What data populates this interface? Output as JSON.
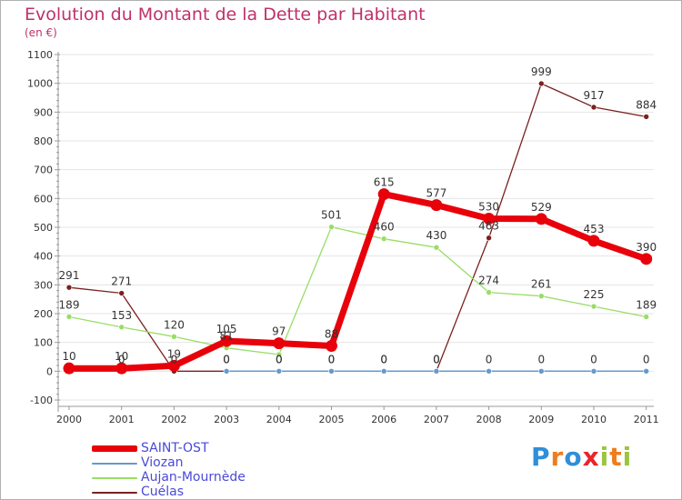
{
  "header": {
    "title": "Evolution du Montant de la Dette par Habitant",
    "subtitle": "(en €)"
  },
  "colors": {
    "title": "#c0306a",
    "axis": "#999999",
    "grid": "#e4e4e4",
    "label_text": "#333333"
  },
  "brand": {
    "letters": [
      "P",
      "r",
      "o",
      "x",
      "i",
      "t",
      "i"
    ],
    "colors": [
      "#2f8fd8",
      "#f07c1c",
      "#2f8fd8",
      "#e8262a",
      "#9bc53d",
      "#f07c1c",
      "#9bc53d"
    ]
  },
  "chart_data": {
    "type": "line",
    "categories": [
      "2000",
      "2001",
      "2002",
      "2003",
      "2004",
      "2005",
      "2006",
      "2007",
      "2008",
      "2009",
      "2010",
      "2011"
    ],
    "ylim": [
      -100,
      1100
    ],
    "yticks": [
      "-100",
      "0",
      "100",
      "200",
      "300",
      "400",
      "500",
      "600",
      "700",
      "800",
      "900",
      "1000",
      "1100"
    ],
    "grid": "horizontal",
    "legend": "bottom-left",
    "series": [
      {
        "name": "SAINT-OST",
        "color": "#e8000a",
        "legend_text_color": "#4a4ad8",
        "values": [
          10,
          10,
          19,
          105,
          97,
          88,
          615,
          577,
          530,
          529,
          453,
          390
        ],
        "labels": [
          "10",
          "10",
          "19",
          "105",
          "97",
          "88",
          "615",
          "577",
          "530",
          "529",
          "453",
          "390"
        ]
      },
      {
        "name": "Viozan",
        "color": "#6699cc",
        "legend_text_color": "#4a4ad8",
        "values": [
          0,
          0,
          null,
          0,
          0,
          0,
          0,
          0,
          0,
          0,
          0,
          0
        ],
        "labels": [
          "",
          "0",
          "",
          "0",
          "0",
          "0",
          "0",
          "0",
          "0",
          "0",
          "0",
          "0"
        ]
      },
      {
        "name": "Aujan-Mournède",
        "color": "#99dd66",
        "legend_text_color": "#4a4ad8",
        "values": [
          189,
          153,
          120,
          81,
          58,
          501,
          460,
          430,
          274,
          261,
          225,
          189
        ],
        "labels": [
          "189",
          "153",
          "120",
          "81",
          "",
          "501",
          "460",
          "430",
          "274",
          "261",
          "225",
          "189"
        ]
      },
      {
        "name": "Cuélas",
        "color": "#7a2020",
        "legend_text_color": "#4a4ad8",
        "values": [
          291,
          271,
          0,
          0,
          0,
          0,
          0,
          0,
          463,
          999,
          917,
          884
        ],
        "labels": [
          "291",
          "271",
          "0",
          "0",
          "0",
          "0",
          "0",
          "0",
          "463",
          "999",
          "917",
          "884"
        ]
      }
    ]
  }
}
